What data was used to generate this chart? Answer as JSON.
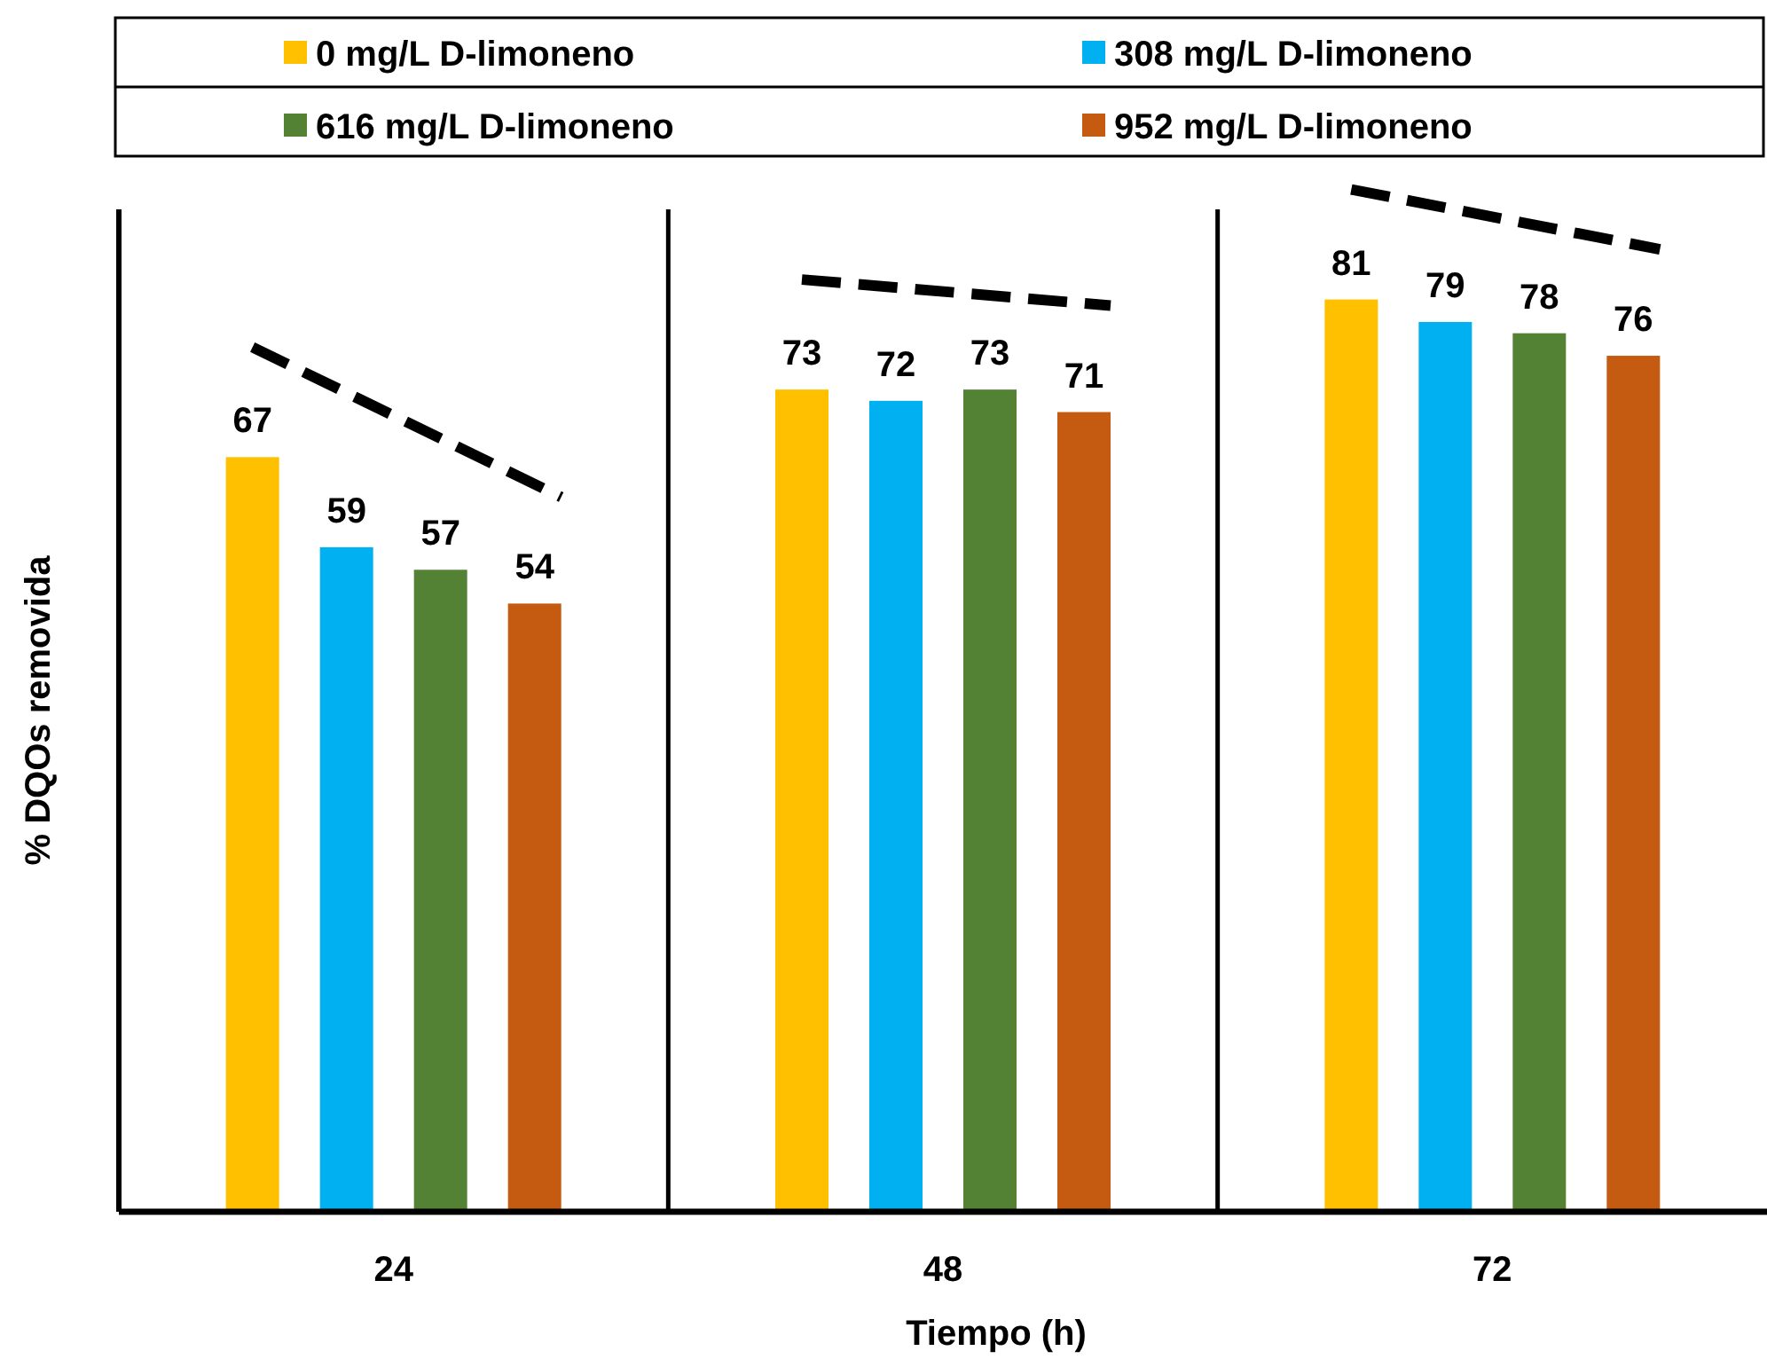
{
  "chart_data": {
    "type": "bar",
    "xlabel": "Tiempo (h)",
    "ylabel": "% DQOs removida",
    "categories": [
      "24",
      "48",
      "72"
    ],
    "series": [
      {
        "name": "0 mg/L D-limoneno",
        "color": "#ffc000",
        "values": [
          67,
          73,
          81
        ]
      },
      {
        "name": "308 mg/L D-limoneno",
        "color": "#00b0f0",
        "values": [
          59,
          72,
          79
        ]
      },
      {
        "name": "616 mg/L D-limoneno",
        "color": "#548235",
        "values": [
          57,
          73,
          78
        ]
      },
      {
        "name": "952 mg/L D-limoneno",
        "color": "#c55a11",
        "values": [
          54,
          71,
          76
        ]
      }
    ],
    "ylim": [
      0,
      89
    ],
    "tick_labels": "x",
    "data_labels": true,
    "legend": "top",
    "grid": "x"
  }
}
